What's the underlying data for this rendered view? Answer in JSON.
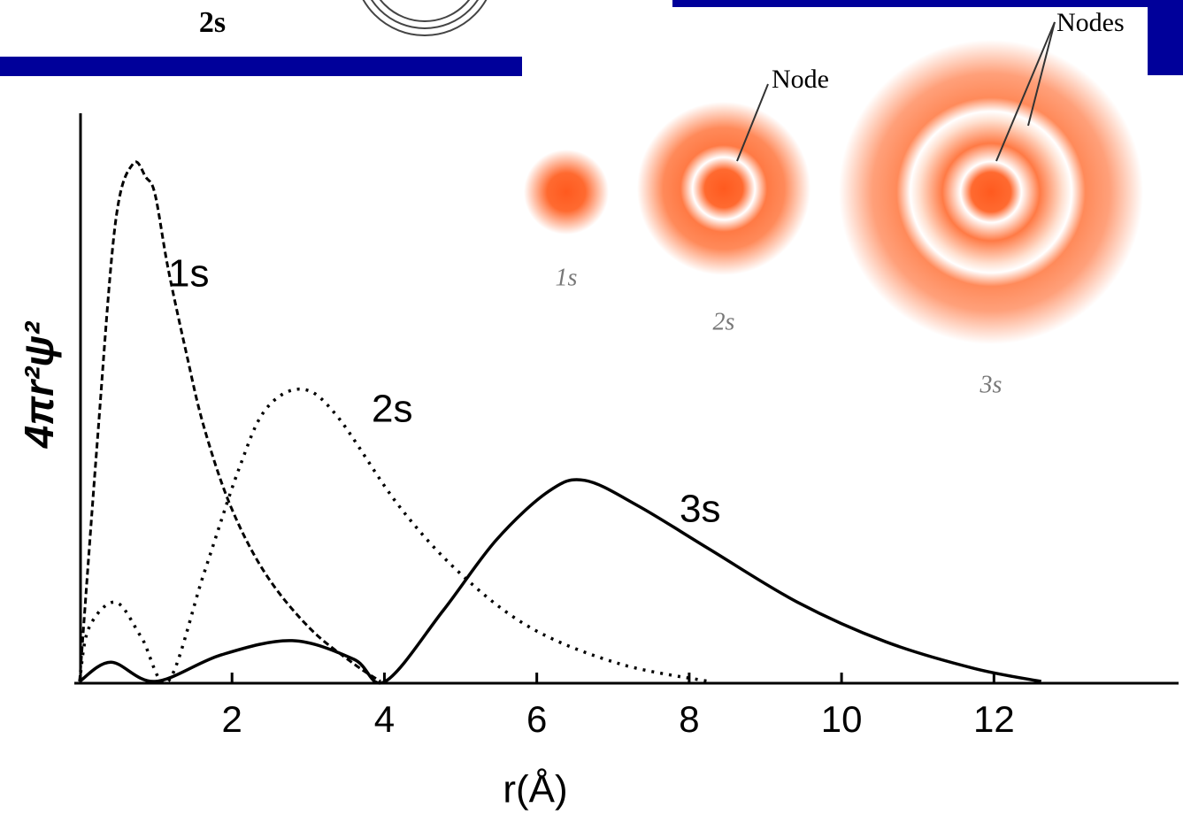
{
  "chart_data": {
    "type": "line",
    "x_label": "r(Å)",
    "y_label": "4πr²ψ²",
    "xlim": [
      0,
      14.4
    ],
    "ylim": [
      0,
      100
    ],
    "xticks": [
      2,
      4,
      6,
      8,
      10,
      12
    ],
    "series": [
      {
        "name": "1s",
        "color": "#000000",
        "style": "dashed",
        "x": [
          0,
          0.23,
          0.47,
          0.7,
          0.87,
          0.99,
          1.16,
          1.4,
          1.63,
          1.98,
          2.44,
          3.02,
          3.6,
          3.95
        ],
        "values": [
          0,
          42,
          81,
          91.4,
          89,
          86,
          73,
          58,
          45,
          31,
          19,
          9.4,
          3.1,
          0
        ]
      },
      {
        "name": "2s",
        "color": "#000000",
        "style": "dotted",
        "x": [
          0,
          0.12,
          0.47,
          0.81,
          1.16,
          1.63,
          2.09,
          2.44,
          2.91,
          3.37,
          4.19,
          5.0,
          5.93,
          7.09,
          8.26
        ],
        "values": [
          0,
          9.4,
          14,
          7.8,
          0,
          19,
          37.5,
          48,
          51.6,
          47,
          31,
          19,
          9.4,
          3.1,
          0
        ]
      },
      {
        "name": "3s",
        "color": "#000000",
        "style": "solid",
        "x": [
          0,
          0.41,
          0.99,
          1.86,
          2.79,
          3.6,
          4.01,
          4.77,
          5.47,
          6.16,
          6.63,
          7.33,
          8.26,
          9.42,
          10.58,
          11.74,
          12.62
        ],
        "values": [
          0,
          3.4,
          0,
          4.7,
          7.2,
          3.9,
          0,
          12.5,
          25,
          33.6,
          35.5,
          31,
          23.4,
          14,
          7,
          2.3,
          0
        ]
      }
    ],
    "annotations": [
      "2s",
      "Node",
      "Nodes",
      "1s",
      "2s",
      "3s"
    ]
  }
}
